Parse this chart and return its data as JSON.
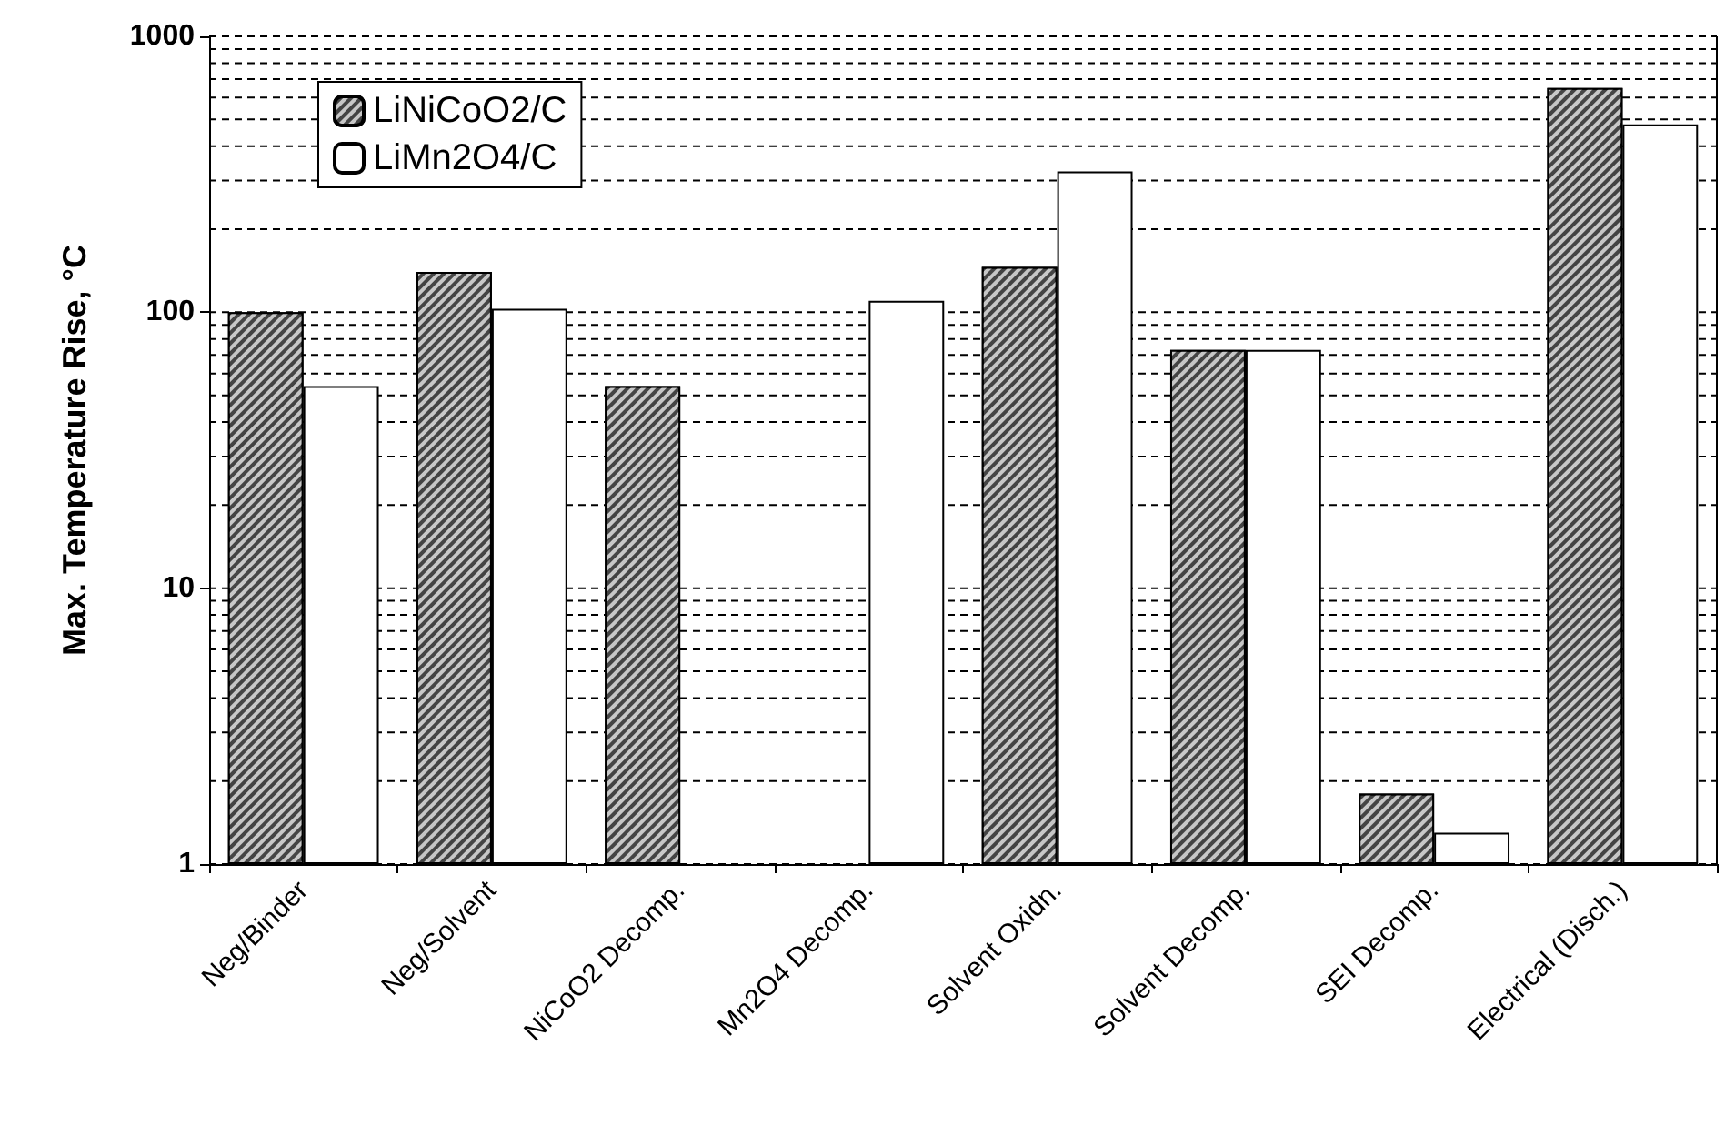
{
  "chart_data": {
    "type": "bar",
    "ylabel": "Max. Temperature Rise, °C",
    "categories": [
      "Neg/Binder",
      "Neg/Solvent",
      "NiCoO2 Decomp.",
      "Mn2O4 Decomp.",
      "Solvent Oxidn.",
      "Solvent Decomp.",
      "SEI Decomp.",
      "Electrical (Disch.)"
    ],
    "series": [
      {
        "name": "LiNiCoO2/C",
        "color": "#444444",
        "values": [
          100,
          140,
          54,
          null,
          146,
          73,
          1.8,
          650
        ]
      },
      {
        "name": "LiMn2O4/C",
        "color": "#ffffff",
        "values": [
          54,
          103,
          null,
          110,
          324,
          73,
          1.3,
          480
        ]
      }
    ],
    "log": true,
    "ylim": [
      1,
      1000
    ],
    "yticks": [
      1,
      {
        "value": 2,
        "label": null
      },
      {
        "value": 3,
        "label": null
      },
      {
        "value": 4,
        "label": null
      },
      {
        "value": 5,
        "label": null
      },
      {
        "value": 6,
        "label": null
      },
      {
        "value": 7,
        "label": null
      },
      {
        "value": 8,
        "label": null
      },
      {
        "value": 9,
        "label": null
      },
      10,
      {
        "value": 20,
        "label": null
      },
      {
        "value": 30,
        "label": null
      },
      {
        "value": 40,
        "label": null
      },
      {
        "value": 50,
        "label": null
      },
      {
        "value": 60,
        "label": null
      },
      {
        "value": 70,
        "label": null
      },
      {
        "value": 80,
        "label": null
      },
      {
        "value": 90,
        "label": null
      },
      100,
      {
        "value": 200,
        "label": null
      },
      {
        "value": 300,
        "label": null
      },
      {
        "value": 400,
        "label": null
      },
      {
        "value": 500,
        "label": null
      },
      {
        "value": 600,
        "label": null
      },
      {
        "value": 700,
        "label": null
      },
      {
        "value": 800,
        "label": null
      },
      {
        "value": 900,
        "label": null
      },
      1000
    ],
    "grid": "y",
    "legend": "top left"
  }
}
